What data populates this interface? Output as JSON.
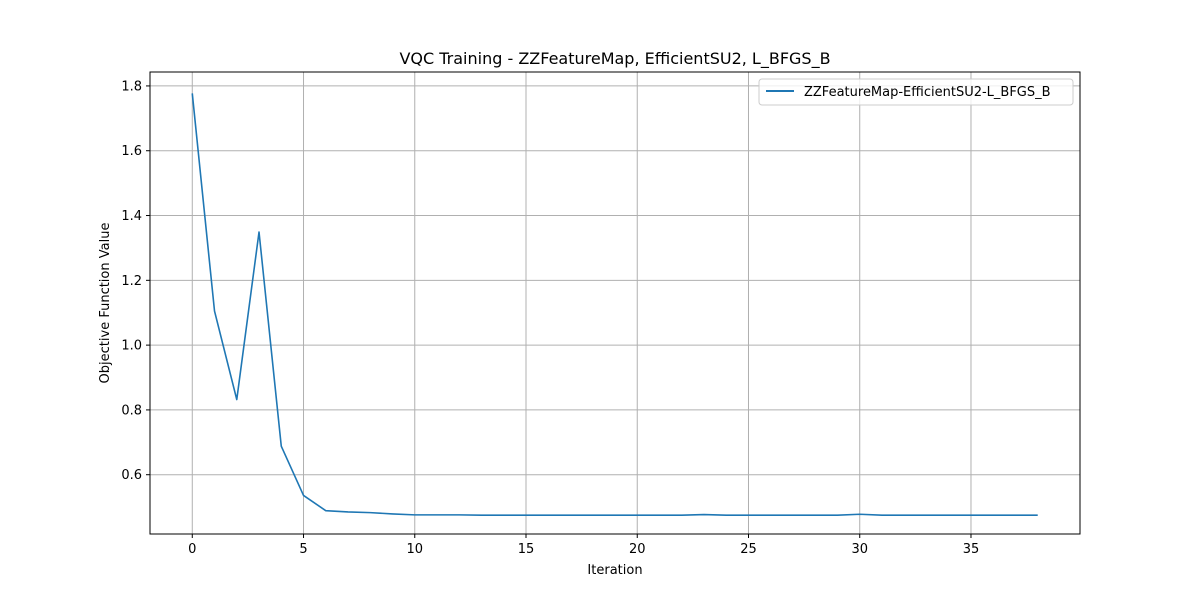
{
  "chart_data": {
    "type": "line",
    "title": "VQC Training - ZZFeatureMap, EfficientSU2, L_BFGS_B",
    "xlabel": "Iteration",
    "ylabel": "Objective Function Value",
    "xlim": [
      -1.9,
      39.9
    ],
    "ylim": [
      0.417,
      1.843
    ],
    "xticks": [
      0,
      5,
      10,
      15,
      20,
      25,
      30,
      35
    ],
    "yticks": [
      0.6,
      0.8,
      1.0,
      1.2,
      1.4,
      1.6,
      1.8
    ],
    "grid": true,
    "legend_position": "top-right",
    "series": [
      {
        "name": "ZZFeatureMap-EfficientSU2-L_BFGS_B",
        "color": "#1f77b4",
        "x": [
          0,
          1,
          2,
          3,
          4,
          5,
          6,
          7,
          8,
          9,
          10,
          11,
          12,
          13,
          14,
          15,
          16,
          17,
          18,
          19,
          20,
          21,
          22,
          23,
          24,
          25,
          26,
          27,
          28,
          29,
          30,
          31,
          32,
          33,
          34,
          35,
          36,
          37,
          38
        ],
        "values": [
          1.777,
          1.105,
          0.832,
          1.349,
          0.688,
          0.536,
          0.489,
          0.485,
          0.483,
          0.479,
          0.476,
          0.476,
          0.476,
          0.475,
          0.475,
          0.475,
          0.475,
          0.475,
          0.475,
          0.475,
          0.475,
          0.475,
          0.475,
          0.477,
          0.475,
          0.475,
          0.475,
          0.475,
          0.475,
          0.475,
          0.478,
          0.475,
          0.475,
          0.475,
          0.475,
          0.475,
          0.475,
          0.475,
          0.475
        ]
      }
    ]
  }
}
